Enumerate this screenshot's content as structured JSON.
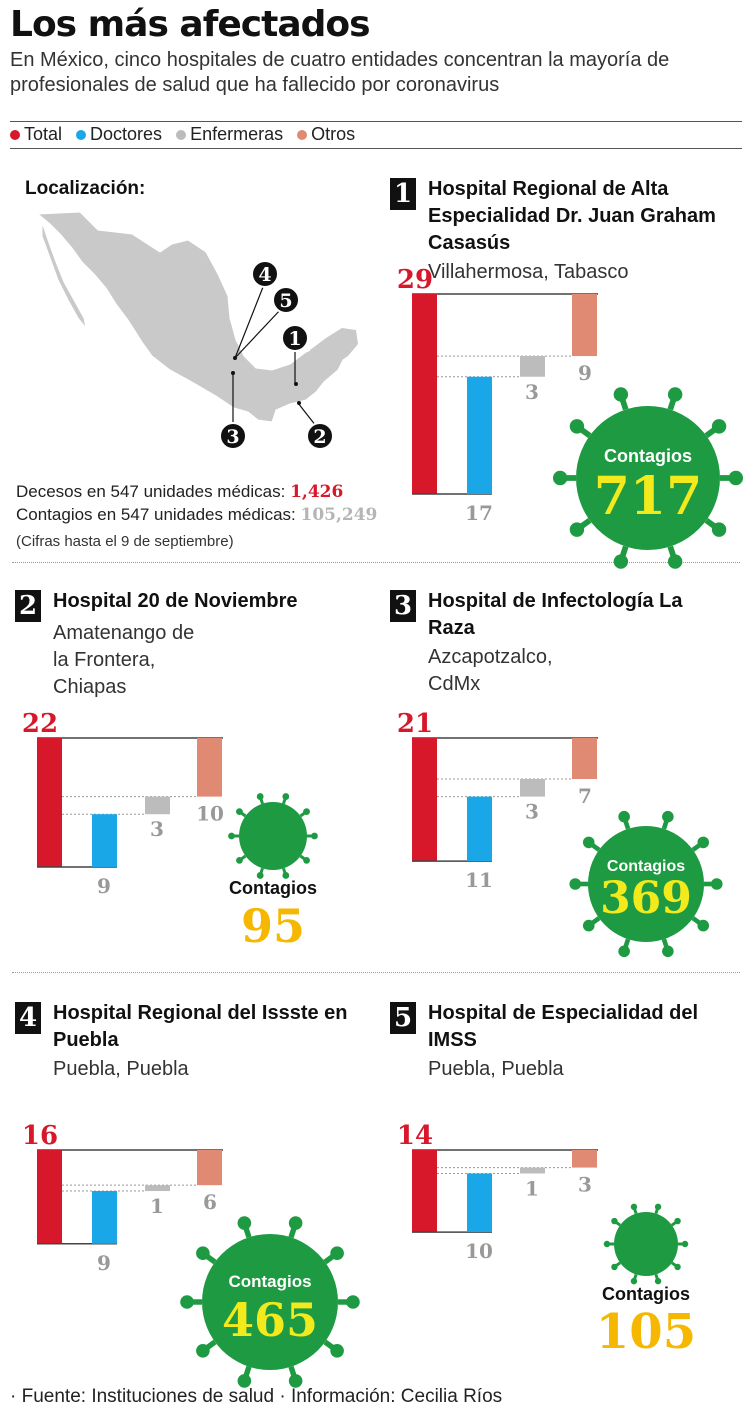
{
  "title": "Los más afectados",
  "subtitle": "En México, cinco hospitales de cuatro entidades concentran la mayoría de profesionales de salud que ha fallecido por coronavirus",
  "legend": [
    {
      "label": "Total",
      "color": "#d7182a"
    },
    {
      "label": "Doctores",
      "color": "#1aa7e8"
    },
    {
      "label": "Enfermeras",
      "color": "#bcbcbc"
    },
    {
      "label": "Otros",
      "color": "#e08a74"
    }
  ],
  "map": {
    "label": "Localización:",
    "markers": [
      "1",
      "2",
      "3",
      "4",
      "5"
    ]
  },
  "stats": {
    "deaths_label": "Decesos en 547 unidades médicas:",
    "deaths_value": "1,426",
    "cases_label": "Contagios en 547 unidades médicas:",
    "cases_value": "105,249",
    "note": "(Cifras hasta el 9 de septiembre)"
  },
  "contagios_label": "Contagios",
  "colors": {
    "virus": "#1e9a43",
    "virus_text": "#f2ea1c",
    "contagios_outside": "#f5b700",
    "total": "#d7182a",
    "doctors": "#1aa7e8",
    "nurses": "#bcbcbc",
    "others": "#e08a74"
  },
  "chart_data": [
    {
      "type": "bar",
      "number": "1",
      "hospital": "Hospital Regional de Alta Especialidad Dr. Juan Graham Casasús",
      "location": "Villahermosa, Tabasco",
      "categories": [
        "Total",
        "Doctores",
        "Enfermeras",
        "Otros"
      ],
      "values": [
        29,
        17,
        3,
        9
      ],
      "contagios": "717"
    },
    {
      "type": "bar",
      "number": "2",
      "hospital": "Hospital 20 de Noviembre",
      "location": "Amatenango de la Frontera, Chiapas",
      "categories": [
        "Total",
        "Doctores",
        "Enfermeras",
        "Otros"
      ],
      "values": [
        22,
        9,
        3,
        10
      ],
      "contagios": "95"
    },
    {
      "type": "bar",
      "number": "3",
      "hospital": "Hospital de Infectología La Raza",
      "location": "Azcapotzalco, CdMx",
      "categories": [
        "Total",
        "Doctores",
        "Enfermeras",
        "Otros"
      ],
      "values": [
        21,
        11,
        3,
        7
      ],
      "contagios": "369"
    },
    {
      "type": "bar",
      "number": "4",
      "hospital": "Hospital Regional del Issste en Puebla",
      "location": "Puebla, Puebla",
      "categories": [
        "Total",
        "Doctores",
        "Enfermeras",
        "Otros"
      ],
      "values": [
        16,
        9,
        1,
        6
      ],
      "contagios": "465"
    },
    {
      "type": "bar",
      "number": "5",
      "hospital": "Hospital de Especialidad del IMSS",
      "location": "Puebla, Puebla",
      "categories": [
        "Total",
        "Doctores",
        "Enfermeras",
        "Otros"
      ],
      "values": [
        14,
        10,
        1,
        3
      ],
      "contagios": "105"
    }
  ],
  "source": {
    "fuente_label": "Fuente:",
    "fuente": "Instituciones de salud",
    "info_label": "Información:",
    "info": "Cecilia Ríos"
  }
}
